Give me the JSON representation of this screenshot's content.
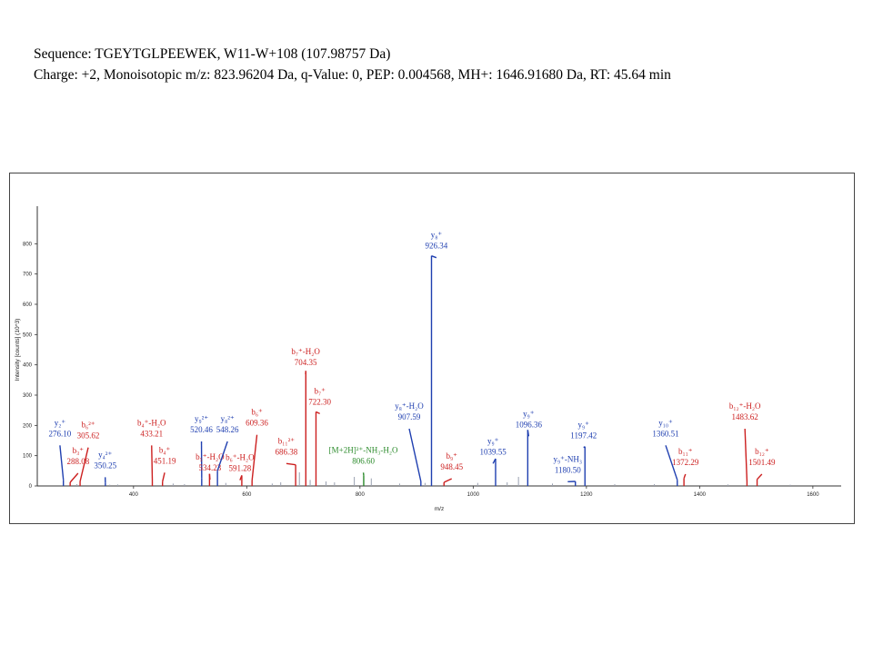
{
  "header": {
    "line1": "Sequence: TGEYTGLPEEWEK, W11-W+108 (107.98757 Da)",
    "line2": "Charge: +2, Monoisotopic m/z: 823.96204 Da, q-Value: 0, PEP: 0.004568, MH+: 1646.91680 Da, RT: 45.64 min"
  },
  "colors": {
    "b_ion": "#cc1f1f",
    "y_ion": "#1f3fb0",
    "precursor": "#2a8a2a",
    "unassigned": "#9aa0b0"
  },
  "chart_data": {
    "type": "bar",
    "title": "",
    "xlabel": "m/z",
    "ylabel": "Intensity [counts] (10^3)",
    "xlim": [
      230,
      1650
    ],
    "ylim": [
      0,
      900
    ],
    "xticks": [
      400,
      600,
      800,
      1000,
      1200,
      1400,
      1600
    ],
    "yticks": [
      0,
      100,
      200,
      300,
      400,
      500,
      600,
      700,
      800
    ],
    "peaks": [
      {
        "mz": 276.1,
        "intensity": 20,
        "ion": "y",
        "label": [
          "y₂⁺",
          "276.10"
        ],
        "lab_mz": 270,
        "lab_int": 200
      },
      {
        "mz": 288.08,
        "intensity": 12,
        "ion": "b",
        "label": [
          "b₃⁺",
          "288.08"
        ],
        "lab_mz": 302,
        "lab_int": 108
      },
      {
        "mz": 305.62,
        "intensity": 15,
        "ion": "b",
        "label": [
          "b₆²⁺",
          "305.62"
        ],
        "lab_mz": 320,
        "lab_int": 193
      },
      {
        "mz": 350.25,
        "intensity": 10,
        "ion": "y",
        "label": [
          "y₄²⁺",
          "350.25"
        ],
        "lab_mz": 350,
        "lab_int": 95
      },
      {
        "mz": 433.21,
        "intensity": 18,
        "ion": "b",
        "label": [
          "b₄⁺-H₂O",
          "433.21"
        ],
        "lab_mz": 432,
        "lab_int": 200
      },
      {
        "mz": 451.19,
        "intensity": 14,
        "ion": "b",
        "label": [
          "b₄⁺",
          "451.19"
        ],
        "lab_mz": 455,
        "lab_int": 110
      },
      {
        "mz": 520.46,
        "intensity": 25,
        "ion": "y",
        "label": [
          "y₉²⁺",
          "520.46"
        ],
        "lab_mz": 520,
        "lab_int": 213
      },
      {
        "mz": 534.23,
        "intensity": 40,
        "ion": "b",
        "label": [
          "b₅⁺-H₂O",
          "534.23"
        ],
        "lab_mz": 535,
        "lab_int": 87
      },
      {
        "mz": 548.26,
        "intensity": 50,
        "ion": "y",
        "label": [
          "y₈²⁺",
          "548.26"
        ],
        "lab_mz": 566,
        "lab_int": 213
      },
      {
        "mz": 591.28,
        "intensity": 35,
        "ion": "b",
        "label": [
          "b₆⁺-H₂O",
          "591.28"
        ],
        "lab_mz": 588,
        "lab_int": 85
      },
      {
        "mz": 609.36,
        "intensity": 18,
        "ion": "b",
        "label": [
          "b₆⁺",
          "609.36"
        ],
        "lab_mz": 618,
        "lab_int": 235
      },
      {
        "mz": 686.38,
        "intensity": 70,
        "ion": "b",
        "label": [
          "b₁₁²⁺",
          "686.38"
        ],
        "lab_mz": 670,
        "lab_int": 140
      },
      {
        "mz": 704.35,
        "intensity": 380,
        "ion": "b",
        "label": [
          "b₇⁺-H₂O",
          "704.35"
        ],
        "lab_mz": 704,
        "lab_int": 435
      },
      {
        "mz": 722.3,
        "intensity": 245,
        "ion": "b",
        "label": [
          "b₇⁺",
          "722.30"
        ],
        "lab_mz": 729,
        "lab_int": 305
      },
      {
        "mz": 806.6,
        "intensity": 35,
        "ion": "precursor",
        "label": [
          "[M+2H]²⁺-NH₃-H₂O",
          "806.60"
        ],
        "lab_mz": 806,
        "lab_int": 110
      },
      {
        "mz": 907.59,
        "intensity": 15,
        "ion": "y",
        "label": [
          "y₈⁺-H₂O",
          "907.59"
        ],
        "lab_mz": 887,
        "lab_int": 255
      },
      {
        "mz": 926.34,
        "intensity": 760,
        "ion": "y",
        "label": [
          "y₈⁺",
          "926.34"
        ],
        "lab_mz": 935,
        "lab_int": 820
      },
      {
        "mz": 948.45,
        "intensity": 12,
        "ion": "b",
        "label": [
          "b₉⁺",
          "948.45"
        ],
        "lab_mz": 962,
        "lab_int": 90
      },
      {
        "mz": 1039.55,
        "intensity": 90,
        "ion": "y",
        "label": [
          "y₉⁺",
          "1039.55"
        ],
        "lab_mz": 1035,
        "lab_int": 140
      },
      {
        "mz": 1096.36,
        "intensity": 185,
        "ion": "y",
        "label": [
          "y₉⁺",
          "1096.36"
        ],
        "lab_mz": 1098,
        "lab_int": 230
      },
      {
        "mz": 1180.5,
        "intensity": 15,
        "ion": "y",
        "label": [
          "y₉⁺-NH₃",
          "1180.50"
        ],
        "lab_mz": 1167,
        "lab_int": 80
      },
      {
        "mz": 1197.42,
        "intensity": 130,
        "ion": "y",
        "label": [
          "y₉⁺",
          "1197.42"
        ],
        "lab_mz": 1195,
        "lab_int": 193
      },
      {
        "mz": 1360.51,
        "intensity": 20,
        "ion": "y",
        "label": [
          "y₁₀⁺",
          "1360.51"
        ],
        "lab_mz": 1340,
        "lab_int": 200
      },
      {
        "mz": 1372.29,
        "intensity": 25,
        "ion": "b",
        "label": [
          "b₁₁⁺",
          "1372.29"
        ],
        "lab_mz": 1375,
        "lab_int": 105
      },
      {
        "mz": 1483.62,
        "intensity": 15,
        "ion": "b",
        "label": [
          "b₁₂⁺-H₂O",
          "1483.62"
        ],
        "lab_mz": 1480,
        "lab_int": 255
      },
      {
        "mz": 1501.49,
        "intensity": 22,
        "ion": "b",
        "label": [
          "b₁₂⁺",
          "1501.49"
        ],
        "lab_mz": 1510,
        "lab_int": 105
      }
    ],
    "unassigned_peaks": [
      {
        "mz": 300,
        "intensity": 6
      },
      {
        "mz": 358,
        "intensity": 4
      },
      {
        "mz": 372,
        "intensity": 5
      },
      {
        "mz": 470,
        "intensity": 8
      },
      {
        "mz": 490,
        "intensity": 6
      },
      {
        "mz": 563,
        "intensity": 10
      },
      {
        "mz": 645,
        "intensity": 8
      },
      {
        "mz": 660,
        "intensity": 12
      },
      {
        "mz": 693,
        "intensity": 45
      },
      {
        "mz": 712,
        "intensity": 20
      },
      {
        "mz": 740,
        "intensity": 15
      },
      {
        "mz": 755,
        "intensity": 12
      },
      {
        "mz": 790,
        "intensity": 30
      },
      {
        "mz": 820,
        "intensity": 25
      },
      {
        "mz": 870,
        "intensity": 8
      },
      {
        "mz": 915,
        "intensity": 10
      },
      {
        "mz": 1008,
        "intensity": 10
      },
      {
        "mz": 1060,
        "intensity": 12
      },
      {
        "mz": 1080,
        "intensity": 30
      },
      {
        "mz": 1140,
        "intensity": 8
      },
      {
        "mz": 1250,
        "intensity": 6
      },
      {
        "mz": 1320,
        "intensity": 6
      },
      {
        "mz": 1450,
        "intensity": 5
      },
      {
        "mz": 1560,
        "intensity": 4
      }
    ]
  }
}
